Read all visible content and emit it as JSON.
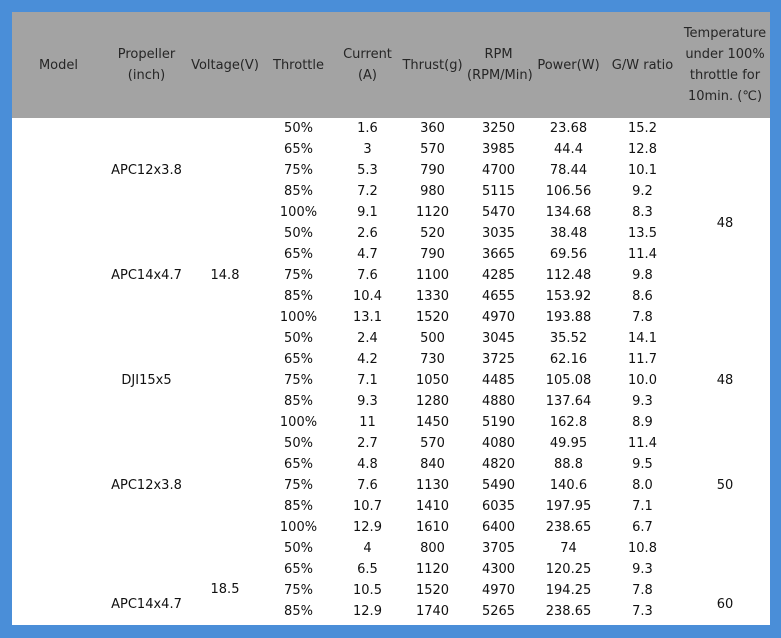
{
  "header": [
    "Model",
    "Propeller (inch)",
    "Voltage(V)",
    "Throttle",
    "Current (A)",
    "Thrust(g)",
    "RPM (RPM/Min)",
    "Power(W)",
    "G/W ratio",
    "Temperature under 100% throttle for 10min. (℃)"
  ],
  "groups": [
    {
      "propeller": "APC12x3.8",
      "rows": [
        [
          "50%",
          "1.6",
          "360",
          "3250",
          "23.68",
          "15.2"
        ],
        [
          "65%",
          "3",
          "570",
          "3985",
          "44.4",
          "12.8"
        ],
        [
          "75%",
          "5.3",
          "790",
          "4700",
          "78.44",
          "10.1"
        ],
        [
          "85%",
          "7.2",
          "980",
          "5115",
          "106.56",
          "9.2"
        ],
        [
          "100%",
          "9.1",
          "1120",
          "5470",
          "134.68",
          "8.3"
        ]
      ]
    },
    {
      "propeller": "APC14x4.7",
      "rows": [
        [
          "50%",
          "2.6",
          "520",
          "3035",
          "38.48",
          "13.5"
        ],
        [
          "65%",
          "4.7",
          "790",
          "3665",
          "69.56",
          "11.4"
        ],
        [
          "75%",
          "7.6",
          "1100",
          "4285",
          "112.48",
          "9.8"
        ],
        [
          "85%",
          "10.4",
          "1330",
          "4655",
          "153.92",
          "8.6"
        ],
        [
          "100%",
          "13.1",
          "1520",
          "4970",
          "193.88",
          "7.8"
        ]
      ]
    },
    {
      "propeller": "DJI15x5",
      "rows": [
        [
          "50%",
          "2.4",
          "500",
          "3045",
          "35.52",
          "14.1"
        ],
        [
          "65%",
          "4.2",
          "730",
          "3725",
          "62.16",
          "11.7"
        ],
        [
          "75%",
          "7.1",
          "1050",
          "4485",
          "105.08",
          "10.0"
        ],
        [
          "85%",
          "9.3",
          "1280",
          "4880",
          "137.64",
          "9.3"
        ],
        [
          "100%",
          "11",
          "1450",
          "5190",
          "162.8",
          "8.9"
        ]
      ]
    },
    {
      "propeller": "APC12x3.8",
      "rows": [
        [
          "50%",
          "2.7",
          "570",
          "4080",
          "49.95",
          "11.4"
        ],
        [
          "65%",
          "4.8",
          "840",
          "4820",
          "88.8",
          "9.5"
        ],
        [
          "75%",
          "7.6",
          "1130",
          "5490",
          "140.6",
          "8.0"
        ],
        [
          "85%",
          "10.7",
          "1410",
          "6035",
          "197.95",
          "7.1"
        ],
        [
          "100%",
          "12.9",
          "1610",
          "6400",
          "238.65",
          "6.7"
        ]
      ]
    },
    {
      "propeller": "APC14x4.7",
      "rows": [
        [
          "50%",
          "4",
          "800",
          "3705",
          "74",
          "10.8"
        ],
        [
          "65%",
          "6.5",
          "1120",
          "4300",
          "120.25",
          "9.3"
        ],
        [
          "75%",
          "10.5",
          "1520",
          "4970",
          "194.25",
          "7.8"
        ],
        [
          "85%",
          "12.9",
          "1740",
          "5265",
          "238.65",
          "7.3"
        ]
      ]
    }
  ],
  "voltages": [
    "14.8",
    "18.5"
  ],
  "temperatures": [
    "48",
    "48",
    "50",
    "60"
  ]
}
